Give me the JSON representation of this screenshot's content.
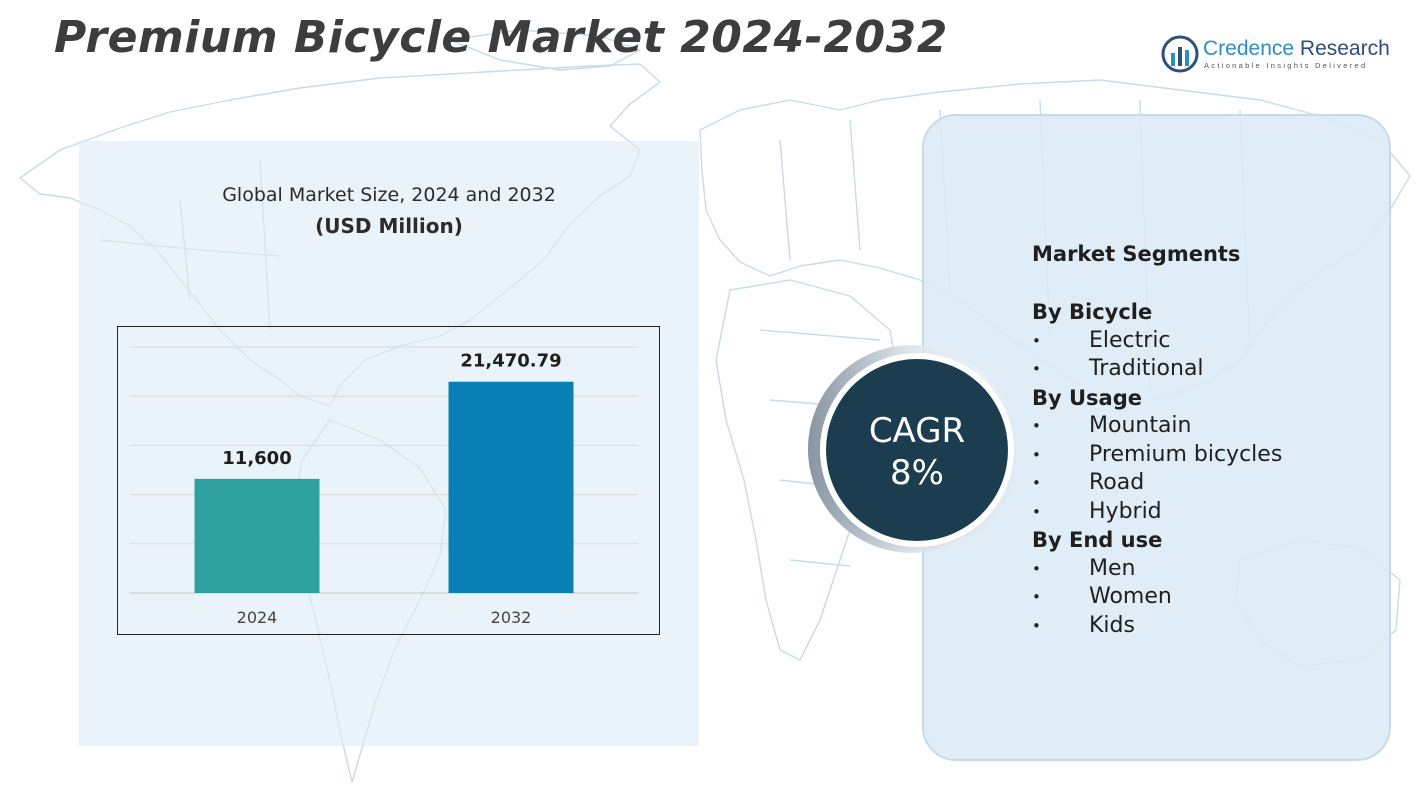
{
  "page": {
    "title": "Premium Bicycle Market 2024-2032"
  },
  "brand": {
    "name_primary": "Credence",
    "name_secondary": "Research",
    "tagline": "Actionable Insights Delivered"
  },
  "chart_data": {
    "type": "bar",
    "title": "Global Market Size, 2024 and 2032",
    "subtitle": "(USD Million)",
    "categories": [
      "2024",
      "2032"
    ],
    "values": [
      11600,
      21470.79
    ],
    "data_labels": [
      "11,600",
      "21,470.79"
    ],
    "colors": [
      "#2ea19e",
      "#0880b5"
    ],
    "xlabel": "",
    "ylabel": "",
    "ylim": [
      0,
      25000
    ],
    "grid": true
  },
  "cagr": {
    "label": "CAGR",
    "value": "8%"
  },
  "segments": {
    "heading": "Market Segments",
    "groups": [
      {
        "title": "By Bicycle",
        "items": [
          "Electric",
          "Traditional"
        ]
      },
      {
        "title": "By Usage",
        "items": [
          "Mountain",
          "Premium bicycles",
          "Road",
          "Hybrid"
        ]
      },
      {
        "title": "By End use",
        "items": [
          "Men",
          "Women",
          "Kids"
        ]
      }
    ]
  },
  "colors": {
    "title_text": "#3d3d3d",
    "panel_bg": "#ddebf5",
    "cagr_circle": "#1b3d4f",
    "brand_blue": "#2d4f7c"
  }
}
